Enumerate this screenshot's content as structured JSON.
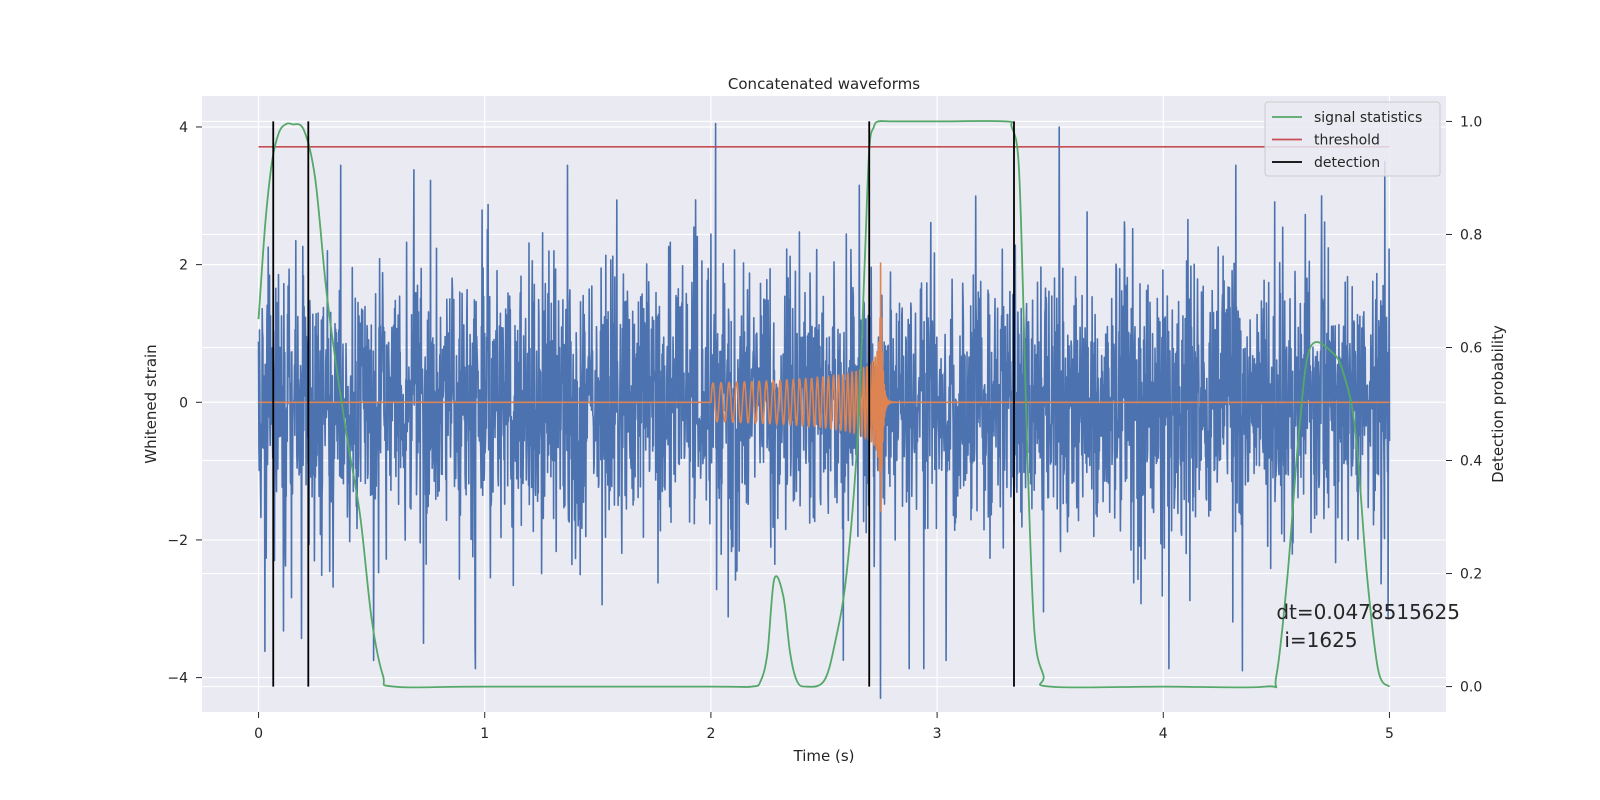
{
  "chart_data": {
    "type": "line",
    "title": "Concatenated waveforms",
    "xlabel": "Time (s)",
    "ylabel_left": "Whitened strain",
    "ylabel_right": "Detection probability",
    "xlim": [
      -0.25,
      5.25
    ],
    "ylim_left": [
      -4.5,
      4.45
    ],
    "ylim_right": [
      -0.045,
      1.045
    ],
    "x_ticks": [
      0,
      1,
      2,
      3,
      4,
      5
    ],
    "x_tick_labels": [
      "0",
      "1",
      "2",
      "3",
      "4",
      "5"
    ],
    "y_left_ticks": [
      -4,
      -2,
      0,
      2,
      4
    ],
    "y_left_tick_labels": [
      "−4",
      "−2",
      "0",
      "2",
      "4"
    ],
    "y_right_ticks": [
      0.0,
      0.2,
      0.4,
      0.6,
      0.8,
      1.0
    ],
    "y_right_tick_labels": [
      "0.0",
      "0.2",
      "0.4",
      "0.6",
      "0.8",
      "1.0"
    ],
    "grid": true,
    "legend_position": "top-right",
    "legend": [
      "signal statistics",
      "threshold",
      "detection"
    ],
    "colors": {
      "strain": "#4c72b0",
      "injected_signal": "#dd8452",
      "signal_statistics": "#55a868",
      "threshold": "#c44e52",
      "detection": "#000000",
      "plot_background": "#eaeaf2",
      "grid": "#ffffff"
    },
    "series": [
      {
        "name": "signal statistics",
        "axis": "right",
        "x": [
          0,
          0.03,
          0.06,
          0.09,
          0.12,
          0.15,
          0.2,
          0.25,
          0.3,
          0.35,
          0.4,
          0.45,
          0.5,
          0.55,
          0.6,
          1.0,
          2.0,
          2.18,
          2.22,
          2.25,
          2.28,
          2.32,
          2.35,
          2.38,
          2.42,
          2.5,
          2.55,
          2.6,
          2.65,
          2.68,
          2.7,
          2.72,
          2.74,
          2.8,
          3.0,
          3.3,
          3.33,
          3.36,
          3.38,
          3.4,
          3.43,
          3.47,
          3.5,
          4.0,
          4.45,
          4.5,
          4.55,
          4.6,
          4.65,
          4.75,
          4.8,
          4.85,
          4.9,
          4.95,
          5.0
        ],
        "y": [
          0.65,
          0.82,
          0.93,
          0.98,
          0.995,
          0.995,
          0.985,
          0.9,
          0.7,
          0.55,
          0.42,
          0.3,
          0.12,
          0.02,
          0.0,
          0.0,
          0.0,
          0.0,
          0.01,
          0.06,
          0.19,
          0.16,
          0.06,
          0.01,
          0.0,
          0.01,
          0.08,
          0.2,
          0.45,
          0.75,
          0.95,
          0.99,
          1.0,
          1.0,
          1.0,
          1.0,
          0.99,
          0.93,
          0.7,
          0.4,
          0.1,
          0.02,
          0.0,
          0.0,
          0.0,
          0.02,
          0.2,
          0.45,
          0.6,
          0.59,
          0.55,
          0.45,
          0.2,
          0.03,
          0.0
        ]
      },
      {
        "name": "threshold",
        "axis": "right",
        "x": [
          0,
          5
        ],
        "y": [
          0.955,
          0.955
        ]
      },
      {
        "name": "detection",
        "axis": "right",
        "type": "vlines",
        "x": [
          0.065,
          0.22,
          2.7,
          3.34
        ],
        "ymin": 0.0,
        "ymax": 1.0
      },
      {
        "name": "",
        "axis": "left",
        "type": "noise",
        "x_range": [
          0,
          5
        ],
        "typical_amplitude": 1.0,
        "min": -4.3,
        "max": 4.05,
        "peaks": [
          {
            "x": 2.02,
            "y": 4.05
          },
          {
            "x": 3.54,
            "y": 4.0
          },
          {
            "x": 4.98,
            "y": 3.5
          },
          {
            "x": 2.75,
            "y": -4.3
          },
          {
            "x": 4.35,
            "y": -3.9
          },
          {
            "x": 3.04,
            "y": -3.75
          },
          {
            "x": 0.73,
            "y": -3.5
          }
        ]
      },
      {
        "name": "",
        "axis": "left",
        "type": "chirp",
        "x_range": [
          2.0,
          2.76
        ],
        "merger_x": 2.75,
        "amplitude_start": 0.28,
        "amplitude_peak": 2.1
      }
    ],
    "annotation": {
      "x": 4.5,
      "y": 0.12,
      "axis": "right",
      "lines": [
        "dt=0.0478515625",
        "i=1625"
      ]
    }
  }
}
